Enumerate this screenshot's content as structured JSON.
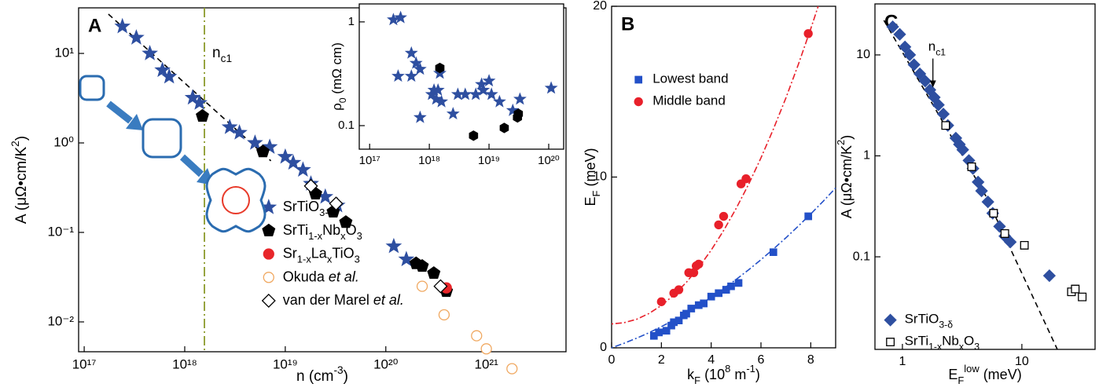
{
  "chart_data": [
    {
      "type": "scatter",
      "label": "A",
      "xscale": "log",
      "yscale": "log",
      "xlim": [
        8.8e+16,
        6.2e+21
      ],
      "ylim": [
        0.00464,
        32.3
      ],
      "xticks": [
        {
          "value": 1e+17,
          "label": "10¹⁷"
        },
        {
          "value": 1e+18,
          "label": "10¹⁸"
        },
        {
          "value": 1e+19,
          "label": "10¹⁹"
        },
        {
          "value": 1e+20,
          "label": "10²⁰"
        },
        {
          "value": 1e+21,
          "label": "10²¹"
        }
      ],
      "yticks": [
        {
          "value": 0.01,
          "label": "10⁻²"
        },
        {
          "value": 0.1,
          "label": "10⁻¹"
        },
        {
          "value": 1,
          "label": "10⁰"
        },
        {
          "value": 10,
          "label": "10¹"
        }
      ],
      "xlabel": [
        "n (cm",
        {
          "sup": "-3"
        },
        ")"
      ],
      "ylabel": [
        "A (μΩ•cm/K",
        {
          "sup": "2"
        },
        ")"
      ],
      "legend_position": "center",
      "series": [
        {
          "name": [
            "SrTiO",
            {
              "sub": "3-δ"
            }
          ],
          "marker": "star",
          "filled": true,
          "color": "#2e4fa0",
          "x": [
            2.4e+17,
            3.3e+17,
            4.5e+17,
            6e+17,
            7e+17,
            1.2e+18,
            1.4e+18,
            2.8e+18,
            3.5e+18,
            5e+18,
            7e+18,
            1e+19,
            1.2e+19,
            1.5e+19,
            1.8e+19,
            2.5e+19,
            3.3e+19,
            1.2e+20,
            1.6e+20
          ],
          "y": [
            20,
            15,
            10,
            6.5,
            5.5,
            3.2,
            2.8,
            1.5,
            1.3,
            1.0,
            0.9,
            0.7,
            0.6,
            0.5,
            0.35,
            0.25,
            0.2,
            0.07,
            0.05
          ]
        },
        {
          "name": [
            "SrTi",
            {
              "sub": "1-x"
            },
            "Nb",
            {
              "sub": "x"
            },
            "O",
            {
              "sub": "3"
            }
          ],
          "marker": "pentagon",
          "filled": true,
          "color": "#000000",
          "x": [
            1.5e+18,
            6e+18,
            2e+19,
            3e+19,
            4e+19,
            2e+20,
            2.3e+20,
            3e+20,
            4e+20
          ],
          "y": [
            2,
            0.8,
            0.27,
            0.17,
            0.13,
            0.045,
            0.042,
            0.035,
            0.022
          ]
        },
        {
          "name": [
            "Sr",
            {
              "sub": "1-x"
            },
            "La",
            {
              "sub": "x"
            },
            "TiO",
            {
              "sub": "3"
            }
          ],
          "marker": "circle",
          "filled": true,
          "color": "#e8262a",
          "x": [
            4e+20
          ],
          "y": [
            0.024
          ]
        },
        {
          "name": [
            "Okuda ",
            {
              "i": "et al."
            }
          ],
          "marker": "circle",
          "filled": false,
          "color": "#f0a860",
          "x": [
            2.3e+20,
            3.8e+20,
            8e+20,
            1e+21,
            1.8e+21
          ],
          "y": [
            0.025,
            0.012,
            0.007,
            0.005,
            0.003
          ]
        },
        {
          "name": [
            "van der Marel ",
            {
              "i": "et al."
            }
          ],
          "marker": "diamond",
          "filled": false,
          "color": "#000000",
          "x": [
            1.8e+19,
            3.2e+19,
            3.5e+20
          ],
          "y": [
            0.33,
            0.21,
            0.025
          ]
        }
      ],
      "fit_lines": [
        {
          "x": [
            1.74e+17,
            7.2e+18
          ],
          "y": [
            27.5,
            0.63
          ],
          "style": "dashed",
          "color": "#000000"
        }
      ],
      "vlines": [
        {
          "x": 1.57e+18,
          "style": "dashdot",
          "color": "#8c9a2c",
          "label": [
            "n",
            {
              "sub": "c1"
            }
          ]
        }
      ]
    },
    {
      "type": "scatter",
      "xscale": "log",
      "yscale": "log",
      "xlim": [
        6.7e+16,
        1.78e+20
      ],
      "ylim": [
        0.0593,
        1.49
      ],
      "xticks": [
        {
          "value": 1e+17,
          "label": "10¹⁷"
        },
        {
          "value": 1e+18,
          "label": "10¹⁸"
        },
        {
          "value": 1e+19,
          "label": "10¹⁹"
        },
        {
          "value": 1e+20,
          "label": "10²⁰"
        }
      ],
      "yticks": [
        0.1,
        1
      ],
      "ylabel": [
        "ρ",
        {
          "sub": "0"
        },
        " (mΩ cm)"
      ],
      "series": [
        {
          "marker": "star",
          "filled": true,
          "color": "#2e4fa0",
          "x": [
            2.5e+17,
            3.3e+17,
            3e+17,
            5e+17,
            6e+17,
            5e+17,
            7e+17,
            7e+17,
            1.1e+18,
            1.2e+18,
            1.4e+18,
            1.3e+18,
            1.5e+18,
            1.6e+18,
            2.5e+18,
            3e+18,
            4e+18,
            6e+18,
            7.5e+18,
            8e+18,
            1e+19,
            1.1e+19,
            1.5e+19,
            2.5e+19,
            3.3e+19,
            1.1e+20
          ],
          "y": [
            1.05,
            1.1,
            0.3,
            0.5,
            0.4,
            0.3,
            0.35,
            0.12,
            0.2,
            0.22,
            0.22,
            0.18,
            0.32,
            0.17,
            0.13,
            0.2,
            0.2,
            0.2,
            0.25,
            0.22,
            0.27,
            0.2,
            0.17,
            0.14,
            0.18,
            0.23
          ]
        },
        {
          "marker": "hexagon",
          "filled": true,
          "color": "#000000",
          "x": [
            1.5e+18,
            5.5e+18,
            1.8e+19,
            3e+19,
            3.1e+19
          ],
          "y": [
            0.36,
            0.08,
            0.095,
            0.12,
            0.13
          ]
        }
      ]
    },
    {
      "type": "scatter",
      "label": "B",
      "xscale": "linear",
      "yscale": "linear",
      "xlim": [
        0,
        9
      ],
      "ylim": [
        0,
        20
      ],
      "xticks": [
        0,
        2,
        4,
        6,
        8
      ],
      "yticks": [
        0,
        10,
        20
      ],
      "xlabel": [
        "k",
        {
          "sub": "F"
        },
        " (10",
        {
          "sup": "8"
        },
        " m",
        {
          "sup": "-1"
        },
        ")"
      ],
      "ylabel": [
        "E",
        {
          "sub": "F"
        },
        " (meV)"
      ],
      "legend_position": "upper left",
      "series": [
        {
          "name": [
            "Lowest band"
          ],
          "marker": "square",
          "filled": true,
          "color": "#2350c8",
          "x": [
            1.7,
            1.9,
            2.2,
            2.4,
            2.5,
            2.7,
            2.9,
            3.0,
            3.2,
            3.5,
            3.7,
            4.0,
            4.3,
            4.6,
            4.8,
            5.1,
            6.5,
            7.9
          ],
          "y": [
            0.7,
            0.9,
            1.0,
            1.3,
            1.5,
            1.6,
            1.9,
            2.0,
            2.3,
            2.5,
            2.6,
            3.0,
            3.2,
            3.4,
            3.6,
            3.8,
            5.6,
            7.7
          ]
        },
        {
          "name": [
            "Middle band"
          ],
          "marker": "circle",
          "filled": true,
          "color": "#e8202a",
          "x": [
            2.0,
            2.5,
            2.7,
            3.1,
            3.3,
            3.4,
            3.5,
            4.3,
            4.5,
            5.2,
            5.4,
            7.9
          ],
          "y": [
            2.7,
            3.2,
            3.4,
            4.4,
            4.4,
            4.8,
            4.9,
            7.2,
            7.7,
            9.6,
            9.9,
            18.4
          ]
        }
      ],
      "fit_lines": [
        {
          "x": [
            0,
            0.5,
            1,
            1.5,
            2,
            2.5,
            3,
            3.5,
            4,
            4.5,
            5,
            5.5,
            6,
            6.5,
            7,
            7.5,
            8,
            8.5,
            9
          ],
          "y": [
            0,
            0.265,
            0.56,
            0.885,
            1.24,
            1.625,
            2.04,
            2.485,
            2.96,
            3.465,
            4.0,
            4.565,
            5.16,
            5.785,
            6.44,
            7.125,
            7.84,
            8.585,
            9.36
          ],
          "style": "dotdash",
          "color": "#2350c8"
        },
        {
          "x": [
            0,
            0.5,
            1,
            1.5,
            2,
            2.5,
            3,
            3.5,
            4,
            4.5,
            5,
            5.5,
            6,
            6.5,
            7,
            7.5,
            8,
            8.3
          ],
          "y": [
            1.4,
            1.47,
            1.67,
            2.01,
            2.48,
            3.09,
            3.83,
            4.71,
            5.72,
            6.87,
            8.15,
            9.57,
            11.12,
            12.81,
            14.63,
            16.59,
            18.68,
            20.0
          ],
          "style": "dotdash",
          "color": "#e8202a"
        }
      ]
    },
    {
      "type": "scatter",
      "label": "C",
      "xscale": "log",
      "yscale": "log",
      "xlim": [
        0.589,
        41
      ],
      "ylim": [
        0.0121,
        32
      ],
      "xticks": [
        1,
        10
      ],
      "yticks": [
        0.1,
        1,
        10
      ],
      "xlabel": [
        "E",
        {
          "sub": "F"
        },
        {
          "sup": "low"
        },
        " (meV)"
      ],
      "ylabel": [
        "A (μΩ•cm/K",
        {
          "sup": "2"
        },
        ")"
      ],
      "legend_position": "lower left",
      "series": [
        {
          "name": [
            "SrTiO",
            {
              "sub": "3-δ"
            }
          ],
          "marker": "diamond",
          "filled": true,
          "color": "#2e4fa0",
          "x": [
            0.83,
            0.95,
            1.05,
            1.15,
            1.25,
            1.4,
            1.55,
            1.7,
            1.85,
            2.0,
            2.2,
            2.4,
            2.8,
            3.0,
            3.2,
            3.6,
            3.9,
            4.3,
            4.6,
            5.2,
            5.7,
            6.5,
            7.2,
            8.0,
            17
          ],
          "y": [
            19,
            16,
            12,
            10,
            8,
            6.5,
            5.5,
            4.5,
            3.8,
            3.2,
            2.6,
            2.0,
            1.5,
            1.3,
            1.15,
            0.9,
            0.75,
            0.55,
            0.45,
            0.35,
            0.27,
            0.2,
            0.16,
            0.14,
            0.065
          ]
        },
        {
          "name": [
            "SrTi",
            {
              "sub": "1-x"
            },
            "Nb",
            {
              "sub": "x"
            },
            "O",
            {
              "sub": "3"
            }
          ],
          "marker": "square",
          "filled": false,
          "color": "#000000",
          "x": [
            2.3,
            3.8,
            5.8,
            7.2,
            10.5,
            26,
            28,
            32
          ],
          "y": [
            2.0,
            0.78,
            0.27,
            0.17,
            0.13,
            0.045,
            0.048,
            0.04
          ]
        }
      ],
      "fit_lines": [
        {
          "x": [
            0.7,
            5,
            19.8
          ],
          "y": [
            22,
            0.4,
            0.0121
          ],
          "style": "dashed",
          "color": "#000000"
        }
      ],
      "annotations": [
        {
          "text": [
            "n",
            {
              "sub": "c1"
            }
          ],
          "x": 1.8,
          "y": 4.5,
          "color": "#000000"
        }
      ]
    }
  ]
}
